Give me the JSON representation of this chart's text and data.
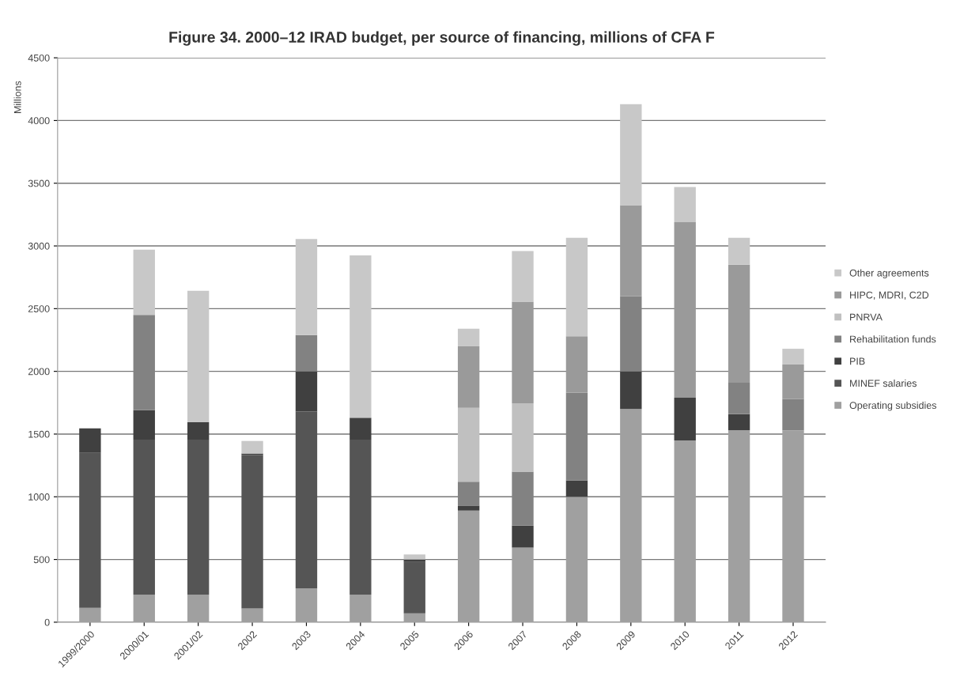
{
  "chart_data": {
    "type": "bar",
    "stacked": true,
    "title": "Figure 34. 2000–12 IRAD budget, per source of financing, millions of CFA F",
    "ylabel": "Millions",
    "categories": [
      "1999/2000",
      "2000/01",
      "2001/02",
      "2002",
      "2003",
      "2004",
      "2005",
      "2006",
      "2007",
      "2008",
      "2009",
      "2010",
      "2011",
      "2012"
    ],
    "series": [
      {
        "name": "Operating subsidies",
        "color": "#a0a0a0",
        "values": [
          115,
          220,
          220,
          110,
          270,
          220,
          70,
          890,
          595,
          1000,
          1700,
          1450,
          1530,
          1530
        ]
      },
      {
        "name": "MINEF salaries",
        "color": "#555555",
        "values": [
          1235,
          1235,
          1235,
          1225,
          1410,
          1230,
          410,
          null,
          null,
          null,
          null,
          null,
          null,
          null
        ]
      },
      {
        "name": "PIB",
        "color": "#404040",
        "values": [
          195,
          235,
          140,
          10,
          320,
          180,
          20,
          40,
          175,
          130,
          300,
          340,
          130,
          null
        ]
      },
      {
        "name": "Rehabilitation funds",
        "color": "#828282",
        "values": [
          null,
          760,
          null,
          null,
          290,
          null,
          null,
          190,
          430,
          700,
          600,
          null,
          250,
          250
        ]
      },
      {
        "name": "PNRVA",
        "color": "#c0c0c0",
        "values": [
          null,
          null,
          null,
          null,
          null,
          null,
          null,
          590,
          545,
          null,
          null,
          null,
          null,
          null
        ]
      },
      {
        "name": "HIPC, MDRI, C2D",
        "color": "#9a9a9a",
        "values": [
          null,
          null,
          null,
          null,
          null,
          null,
          null,
          490,
          810,
          450,
          725,
          1400,
          940,
          275
        ]
      },
      {
        "name": "Other agreements",
        "color": "#c8c8c8",
        "values": [
          null,
          520,
          1047,
          100,
          765,
          1295,
          40,
          140,
          405,
          785,
          805,
          280,
          215,
          125
        ]
      }
    ],
    "ylim": [
      0,
      4500
    ],
    "yticks": [
      0,
      500,
      1000,
      1500,
      2000,
      2500,
      3000,
      3500,
      4000,
      4500
    ],
    "grid": "y",
    "legend": "right"
  }
}
